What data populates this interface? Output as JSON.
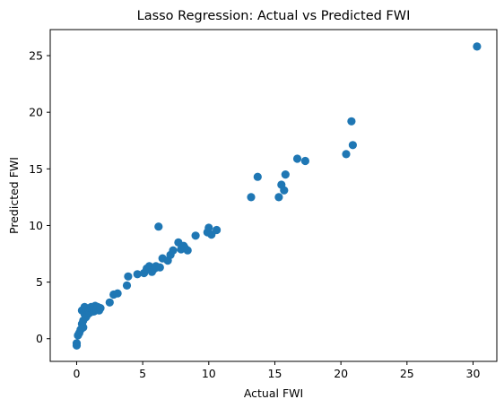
{
  "chart_data": {
    "type": "scatter",
    "title": "Lasso Regression: Actual vs Predicted FWI",
    "xlabel": "Actual FWI",
    "ylabel": "Predicted FWI",
    "xlim": [
      -2,
      31.8
    ],
    "ylim": [
      -2,
      27.3
    ],
    "xticks": [
      0,
      5,
      10,
      15,
      20,
      25,
      30
    ],
    "yticks": [
      0,
      5,
      10,
      15,
      20,
      25
    ],
    "grid": false,
    "color": "#1f77b4",
    "x": [
      0.0,
      0.0,
      0.1,
      0.2,
      0.3,
      0.4,
      0.4,
      0.5,
      0.5,
      0.6,
      0.6,
      0.7,
      0.7,
      0.8,
      0.8,
      0.9,
      1.0,
      1.0,
      1.1,
      1.2,
      1.3,
      1.4,
      1.5,
      1.6,
      1.7,
      1.8,
      2.5,
      2.8,
      3.1,
      3.8,
      3.9,
      4.6,
      5.1,
      5.3,
      5.5,
      5.7,
      5.9,
      6.0,
      6.2,
      6.3,
      6.5,
      6.9,
      7.1,
      7.3,
      7.7,
      7.9,
      8.1,
      8.2,
      8.4,
      9.0,
      9.9,
      10.0,
      10.2,
      10.6,
      13.2,
      13.7,
      15.3,
      15.5,
      15.7,
      15.8,
      16.7,
      17.3,
      20.4,
      20.8,
      20.9,
      30.3
    ],
    "y": [
      -0.4,
      -0.6,
      0.3,
      0.5,
      0.8,
      1.3,
      2.5,
      1.0,
      1.6,
      2.2,
      2.8,
      1.9,
      2.5,
      2.1,
      2.6,
      2.4,
      2.3,
      2.7,
      2.8,
      2.6,
      2.4,
      2.9,
      2.6,
      2.8,
      2.5,
      2.7,
      3.2,
      3.9,
      4.0,
      4.7,
      5.5,
      5.7,
      5.8,
      6.2,
      6.4,
      5.9,
      6.2,
      6.4,
      9.9,
      6.3,
      7.1,
      6.9,
      7.4,
      7.8,
      8.5,
      7.9,
      8.2,
      8.0,
      7.8,
      9.1,
      9.4,
      9.8,
      9.2,
      9.6,
      12.5,
      14.3,
      12.5,
      13.6,
      13.1,
      14.5,
      15.9,
      15.7,
      16.3,
      19.2,
      17.1,
      25.8
    ]
  }
}
